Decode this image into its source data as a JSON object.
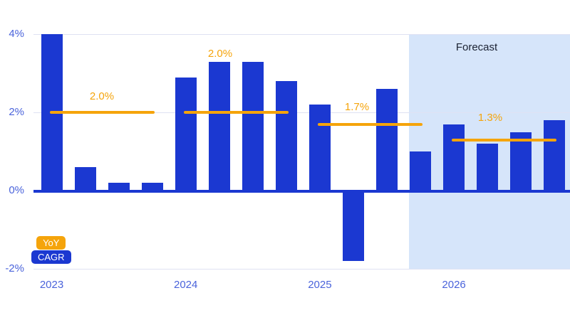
{
  "chart_data": {
    "type": "bar",
    "title": "",
    "unit": "%",
    "ylim": [
      -2,
      4
    ],
    "grid": "horizontal",
    "legend_position": "bottom-left",
    "y_ticks": [
      {
        "label": "4%",
        "value": 4
      },
      {
        "label": "2%",
        "value": 2
      },
      {
        "label": "0%",
        "value": 0
      },
      {
        "label": "-2%",
        "value": -2
      }
    ],
    "years": [
      {
        "label": "2023",
        "yoy_values": [
          4.0,
          0.6,
          0.2,
          0.2
        ],
        "cagr": {
          "label": "2.0%",
          "value": 2.0
        }
      },
      {
        "label": "2024",
        "yoy_values": [
          2.9,
          3.3,
          3.3,
          2.8
        ],
        "cagr": {
          "label": "2.0%",
          "value": 2.0
        }
      },
      {
        "label": "2025",
        "yoy_values": [
          2.2,
          -1.8,
          2.6,
          1.0
        ],
        "cagr": {
          "label": "1.7%",
          "value": 1.7
        }
      },
      {
        "label": "2026",
        "yoy_values": [
          1.7,
          1.2,
          1.5,
          1.8
        ],
        "cagr": {
          "label": "1.3%",
          "value": 1.3
        }
      }
    ],
    "forecast": {
      "label": "Forecast",
      "start_bar_index": 11
    },
    "legend": [
      {
        "label": "YoY",
        "color": "#F5A40B"
      },
      {
        "label": "CAGR",
        "color": "#1B38D1"
      }
    ],
    "colors": {
      "bar": "#1B38D1",
      "cagr_line": "#F5A40B",
      "zero_line": "#1B38D1",
      "gridline": "#DFE2F3",
      "axis_text": "#4A63DB",
      "forecast_bg": "#D6E5FA",
      "forecast_text": "#1B2233"
    }
  }
}
